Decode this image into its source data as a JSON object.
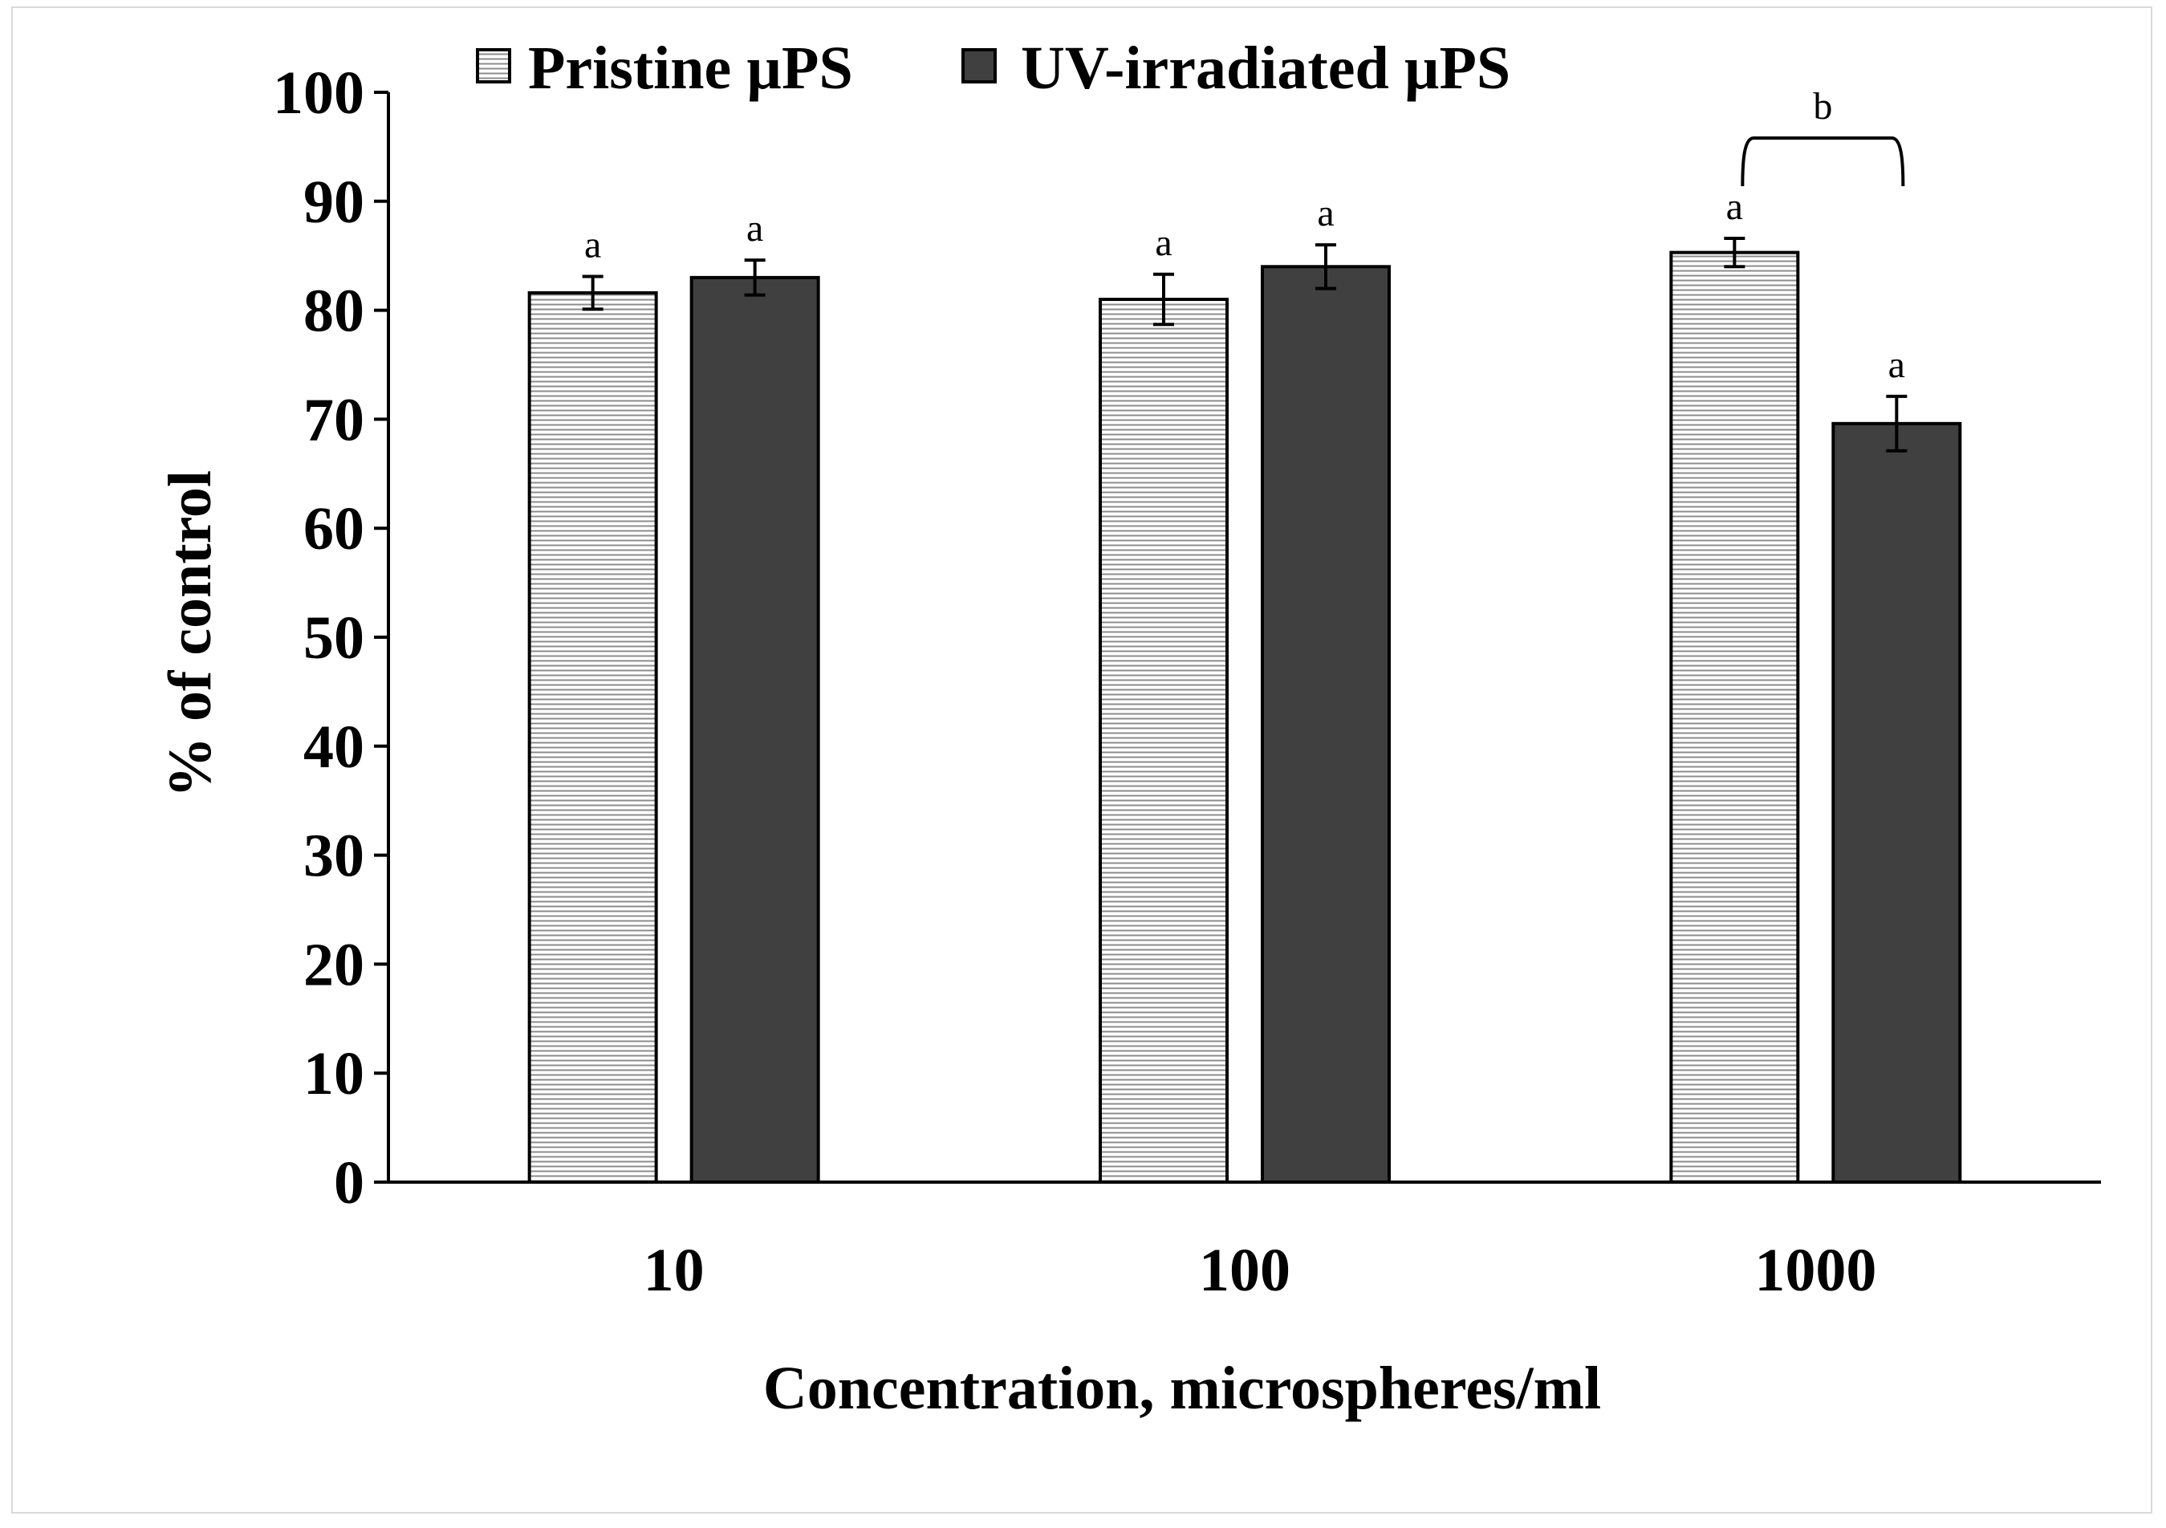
{
  "chart_data": {
    "type": "bar",
    "title": "",
    "xlabel": "Concentration, microspheres/ml",
    "ylabel": "% of control",
    "ylim": [
      0,
      100
    ],
    "yticks": [
      0,
      10,
      20,
      30,
      40,
      50,
      60,
      70,
      80,
      90,
      100
    ],
    "categories": [
      "10",
      "100",
      "1000"
    ],
    "series": [
      {
        "name": "Pristine µPS",
        "fill": "hatched-horizontal",
        "color": "#ffffff",
        "hatch_color": "#8c8c8c",
        "values": [
          81.6,
          81.0,
          85.3
        ],
        "errors": [
          1.5,
          2.3,
          1.3
        ],
        "labels": [
          "a",
          "a",
          "a"
        ]
      },
      {
        "name": "UV-irradiated µPS",
        "fill": "solid",
        "color": "#404040",
        "values": [
          83.0,
          84.0,
          69.6
        ],
        "errors": [
          1.6,
          2.0,
          2.5
        ],
        "labels": [
          "a",
          "a",
          "a"
        ]
      }
    ],
    "annotations": [
      {
        "type": "bracket",
        "category": "1000",
        "label": "b"
      }
    ],
    "legend": "top"
  },
  "colors": {
    "axis": "#000000",
    "frame": "#d9d9d9"
  }
}
